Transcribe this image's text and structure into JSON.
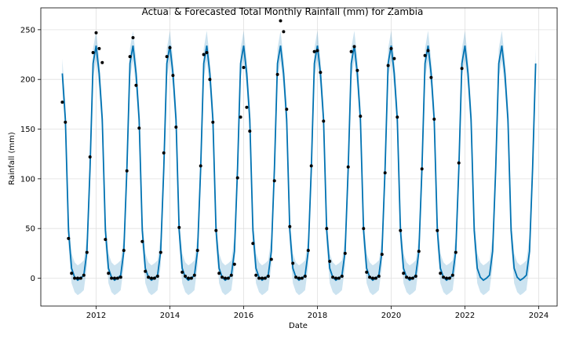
{
  "chart_data": {
    "type": "line",
    "title": "Actual & Forecasted Total Monthly Rainfall (mm) for Zambia",
    "xlabel": "Date",
    "ylabel": "Rainfall (mm)",
    "xlim": [
      "2010-07-01",
      "2024-07-01"
    ],
    "ylim": [
      -28,
      272
    ],
    "x_ticks": [
      "2012",
      "2014",
      "2016",
      "2018",
      "2020",
      "2022",
      "2024"
    ],
    "y_ticks": [
      0,
      50,
      100,
      150,
      200,
      250
    ],
    "grid": true,
    "colors": {
      "forecast": "#0072B2",
      "interval": "#0072B2",
      "actual": "#000000"
    },
    "series": [
      {
        "kind": "actual",
        "points": [
          [
            "2011-02",
            177
          ],
          [
            "2011-03",
            157
          ],
          [
            "2011-04",
            40
          ],
          [
            "2011-05",
            5
          ],
          [
            "2011-06",
            0
          ],
          [
            "2011-07",
            0
          ],
          [
            "2011-08",
            0
          ],
          [
            "2011-09",
            3
          ],
          [
            "2011-10",
            26
          ],
          [
            "2011-11",
            122
          ],
          [
            "2011-12",
            227
          ],
          [
            "2012-01",
            247
          ],
          [
            "2012-02",
            231
          ],
          [
            "2012-03",
            217
          ],
          [
            "2012-04",
            39
          ],
          [
            "2012-05",
            5
          ],
          [
            "2012-06",
            0
          ],
          [
            "2012-07",
            0
          ],
          [
            "2012-08",
            0
          ],
          [
            "2012-09",
            1
          ],
          [
            "2012-10",
            28
          ],
          [
            "2012-11",
            108
          ],
          [
            "2012-12",
            223
          ],
          [
            "2013-01",
            242
          ],
          [
            "2013-02",
            194
          ],
          [
            "2013-03",
            151
          ],
          [
            "2013-04",
            37
          ],
          [
            "2013-05",
            7
          ],
          [
            "2013-06",
            1
          ],
          [
            "2013-07",
            0
          ],
          [
            "2013-08",
            0
          ],
          [
            "2013-09",
            2
          ],
          [
            "2013-10",
            26
          ],
          [
            "2013-11",
            126
          ],
          [
            "2013-12",
            223
          ],
          [
            "2014-01",
            232
          ],
          [
            "2014-02",
            204
          ],
          [
            "2014-03",
            152
          ],
          [
            "2014-04",
            51
          ],
          [
            "2014-05",
            6
          ],
          [
            "2014-06",
            2
          ],
          [
            "2014-07",
            0
          ],
          [
            "2014-08",
            0
          ],
          [
            "2014-09",
            3
          ],
          [
            "2014-10",
            28
          ],
          [
            "2014-11",
            113
          ],
          [
            "2014-12",
            225
          ],
          [
            "2015-01",
            227
          ],
          [
            "2015-02",
            200
          ],
          [
            "2015-03",
            157
          ],
          [
            "2015-04",
            48
          ],
          [
            "2015-05",
            5
          ],
          [
            "2015-06",
            1
          ],
          [
            "2015-07",
            0
          ],
          [
            "2015-08",
            0
          ],
          [
            "2015-09",
            3
          ],
          [
            "2015-10",
            14
          ],
          [
            "2015-11",
            101
          ],
          [
            "2015-12",
            162
          ],
          [
            "2016-01",
            212
          ],
          [
            "2016-02",
            172
          ],
          [
            "2016-03",
            148
          ],
          [
            "2016-04",
            35
          ],
          [
            "2016-05",
            3
          ],
          [
            "2016-06",
            0
          ],
          [
            "2016-07",
            0
          ],
          [
            "2016-08",
            0
          ],
          [
            "2016-09",
            2
          ],
          [
            "2016-10",
            19
          ],
          [
            "2016-11",
            98
          ],
          [
            "2016-12",
            205
          ],
          [
            "2017-01",
            259
          ],
          [
            "2017-02",
            248
          ],
          [
            "2017-03",
            170
          ],
          [
            "2017-04",
            52
          ],
          [
            "2017-05",
            15
          ],
          [
            "2017-06",
            1
          ],
          [
            "2017-07",
            0
          ],
          [
            "2017-08",
            0
          ],
          [
            "2017-09",
            2
          ],
          [
            "2017-10",
            28
          ],
          [
            "2017-11",
            113
          ],
          [
            "2017-12",
            228
          ],
          [
            "2018-01",
            229
          ],
          [
            "2018-02",
            207
          ],
          [
            "2018-03",
            158
          ],
          [
            "2018-04",
            50
          ],
          [
            "2018-05",
            17
          ],
          [
            "2018-06",
            1
          ],
          [
            "2018-07",
            0
          ],
          [
            "2018-08",
            0
          ],
          [
            "2018-09",
            2
          ],
          [
            "2018-10",
            25
          ],
          [
            "2018-11",
            112
          ],
          [
            "2018-12",
            228
          ],
          [
            "2019-01",
            233
          ],
          [
            "2019-02",
            209
          ],
          [
            "2019-03",
            163
          ],
          [
            "2019-04",
            50
          ],
          [
            "2019-05",
            6
          ],
          [
            "2019-06",
            1
          ],
          [
            "2019-07",
            0
          ],
          [
            "2019-08",
            0
          ],
          [
            "2019-09",
            2
          ],
          [
            "2019-10",
            24
          ],
          [
            "2019-11",
            106
          ],
          [
            "2019-12",
            214
          ],
          [
            "2020-01",
            231
          ],
          [
            "2020-02",
            221
          ],
          [
            "2020-03",
            162
          ],
          [
            "2020-04",
            48
          ],
          [
            "2020-05",
            5
          ],
          [
            "2020-06",
            1
          ],
          [
            "2020-07",
            0
          ],
          [
            "2020-08",
            0
          ],
          [
            "2020-09",
            2
          ],
          [
            "2020-10",
            27
          ],
          [
            "2020-11",
            110
          ],
          [
            "2020-12",
            224
          ],
          [
            "2021-01",
            229
          ],
          [
            "2021-02",
            202
          ],
          [
            "2021-03",
            160
          ],
          [
            "2021-04",
            48
          ],
          [
            "2021-05",
            5
          ],
          [
            "2021-06",
            1
          ],
          [
            "2021-07",
            0
          ],
          [
            "2021-08",
            0
          ],
          [
            "2021-09",
            3
          ],
          [
            "2021-10",
            26
          ],
          [
            "2021-11",
            116
          ],
          [
            "2021-12",
            211
          ]
        ]
      },
      {
        "kind": "forecast",
        "profile": {
          "months": [
            "Jan",
            "Feb",
            "Mar",
            "Apr",
            "May",
            "Jun",
            "Jul",
            "Aug",
            "Sep",
            "Oct",
            "Nov",
            "Dec"
          ],
          "values": [
            234,
            206,
            160,
            48,
            10,
            1,
            -2,
            0,
            3,
            27,
            110,
            216
          ]
        },
        "start": "2011-02",
        "end": "2023-12",
        "interval_halfwidth": 15
      }
    ]
  }
}
